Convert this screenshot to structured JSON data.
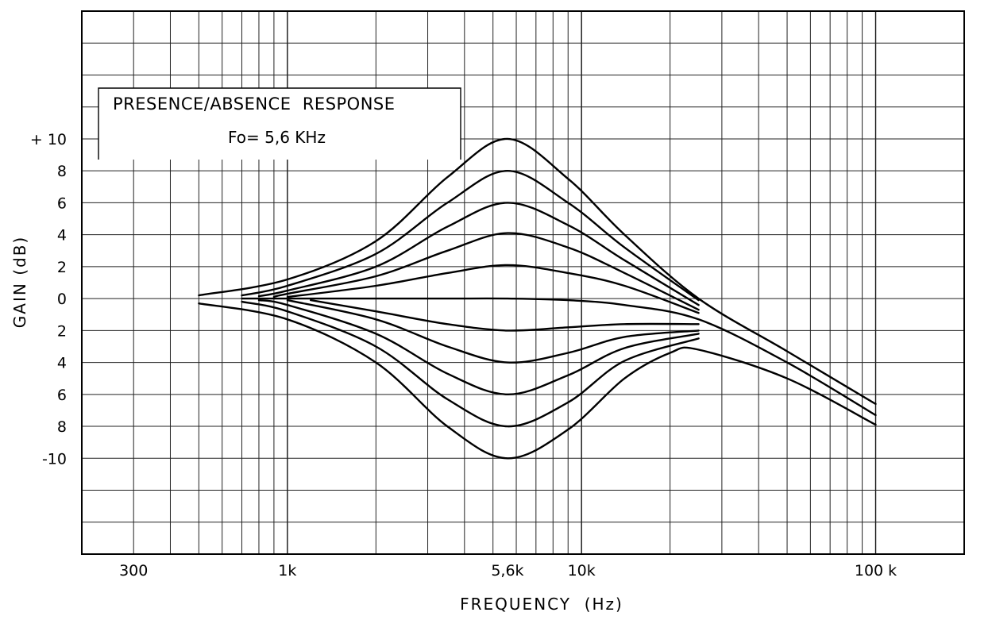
{
  "chart_data": {
    "type": "line",
    "title": "PRESENCE/ABSENCE  RESPONSE",
    "subtitle": "Fo= 5,6 KHz",
    "xlabel": "FREQUENCY  (Hz)",
    "ylabel": "GAIN (dB)",
    "x_scale": "log",
    "xlim": [
      200,
      200000
    ],
    "ylim": [
      -16,
      18
    ],
    "grid": true,
    "x_tick_labels": [
      {
        "value": 300,
        "label": "300"
      },
      {
        "value": 1000,
        "label": "1k"
      },
      {
        "value": 5600,
        "label": "5,6k"
      },
      {
        "value": 10000,
        "label": "10k"
      },
      {
        "value": 100000,
        "label": "100 k"
      }
    ],
    "y_tick_labels": [
      {
        "value": 10,
        "label": "+ 10"
      },
      {
        "value": 8,
        "label": "8"
      },
      {
        "value": 6,
        "label": "6"
      },
      {
        "value": 4,
        "label": "4"
      },
      {
        "value": 2,
        "label": "2"
      },
      {
        "value": 0,
        "label": "0"
      },
      {
        "value": -2,
        "label": "2"
      },
      {
        "value": -4,
        "label": "4"
      },
      {
        "value": -6,
        "label": "6"
      },
      {
        "value": -8,
        "label": "8"
      },
      {
        "value": -10,
        "label": "-10"
      }
    ],
    "series": [
      {
        "peak_gain_db": 10,
        "x": [
          500,
          1000,
          2000,
          3500,
          5600,
          9000,
          14000,
          25000,
          50000,
          100000
        ],
        "y": [
          0.2,
          1.2,
          3.6,
          7.6,
          10.0,
          7.5,
          4.0,
          0.0,
          -3.3,
          -6.6
        ]
      },
      {
        "peak_gain_db": 8,
        "x": [
          700,
          1000,
          2000,
          3500,
          5600,
          9000,
          14000,
          25000
        ],
        "y": [
          0.2,
          0.8,
          2.8,
          6.0,
          8.0,
          6.0,
          3.2,
          -0.1
        ]
      },
      {
        "peak_gain_db": 6,
        "x": [
          800,
          1000,
          2000,
          3500,
          5600,
          9000,
          14000,
          25000
        ],
        "y": [
          0.15,
          0.5,
          2.0,
          4.5,
          6.0,
          4.6,
          2.4,
          -0.4
        ]
      },
      {
        "peak_gain_db": 4,
        "x": [
          900,
          1000,
          2000,
          3500,
          5600,
          9000,
          14000,
          25000
        ],
        "y": [
          0.1,
          0.3,
          1.4,
          3.0,
          4.1,
          3.2,
          1.6,
          -0.7
        ]
      },
      {
        "peak_gain_db": 2,
        "x": [
          1000,
          2000,
          3500,
          5600,
          9000,
          14000,
          25000
        ],
        "y": [
          0.1,
          0.8,
          1.6,
          2.1,
          1.6,
          0.8,
          -0.9
        ]
      },
      {
        "peak_gain_db": 0,
        "x": [
          700,
          1000,
          2000,
          3500,
          5600,
          9000,
          14000,
          25000,
          50000,
          100000
        ],
        "y": [
          0.0,
          0.0,
          0.0,
          0.0,
          0.0,
          -0.1,
          -0.4,
          -1.3,
          -4.0,
          -7.3
        ]
      },
      {
        "peak_gain_db": -2,
        "x": [
          1200,
          2000,
          3500,
          5600,
          9000,
          14000,
          25000
        ],
        "y": [
          -0.1,
          -0.8,
          -1.6,
          -2.0,
          -1.8,
          -1.6,
          -1.6
        ]
      },
      {
        "peak_gain_db": -4,
        "x": [
          1000,
          2000,
          3500,
          5600,
          9000,
          14000,
          25000
        ],
        "y": [
          -0.1,
          -1.3,
          -3.0,
          -4.0,
          -3.4,
          -2.4,
          -2.0
        ]
      },
      {
        "peak_gain_db": -6,
        "x": [
          800,
          1000,
          2000,
          3500,
          5600,
          9000,
          14000,
          25000
        ],
        "y": [
          -0.1,
          -0.4,
          -2.2,
          -4.7,
          -6.0,
          -4.8,
          -3.1,
          -2.2
        ]
      },
      {
        "peak_gain_db": -8,
        "x": [
          700,
          1000,
          2000,
          3500,
          5600,
          9000,
          14000,
          25000
        ],
        "y": [
          -0.2,
          -0.8,
          -3.0,
          -6.3,
          -8.0,
          -6.5,
          -3.9,
          -2.5
        ]
      },
      {
        "peak_gain_db": -10,
        "x": [
          500,
          1000,
          2000,
          3500,
          5600,
          9000,
          14000,
          20000,
          25000,
          50000,
          100000
        ],
        "y": [
          -0.3,
          -1.3,
          -4.0,
          -8.0,
          -10.0,
          -8.2,
          -5.0,
          -3.4,
          -3.2,
          -5.0,
          -7.9
        ]
      }
    ]
  }
}
